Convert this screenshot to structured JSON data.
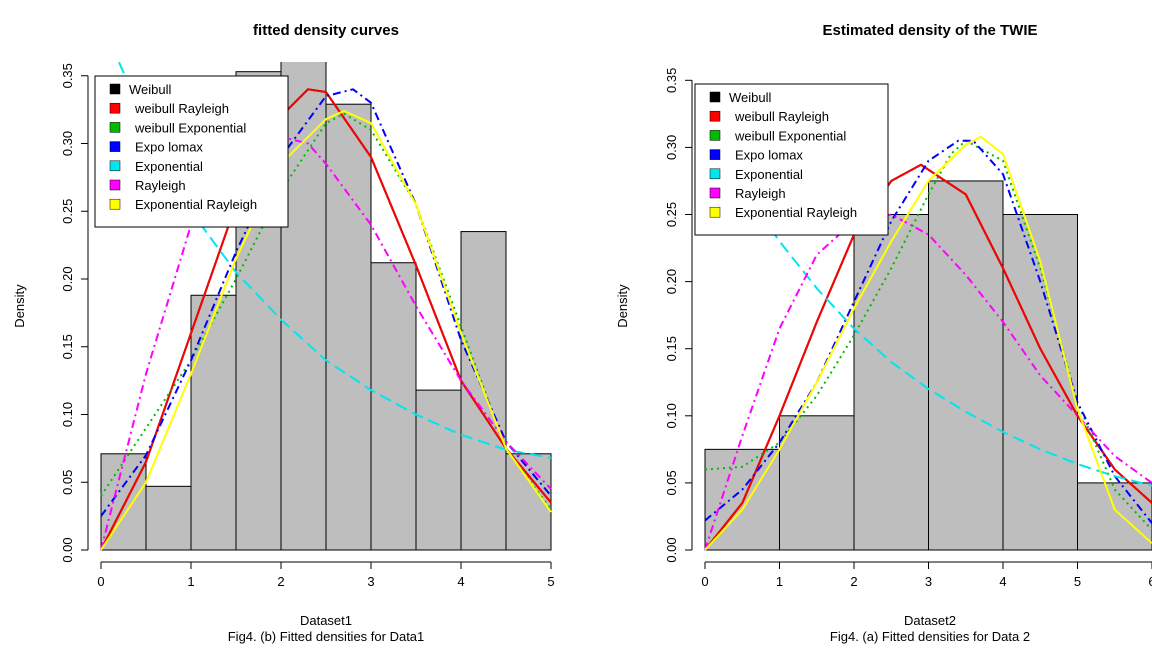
{
  "chart_data": [
    {
      "type": "bar",
      "title": "fitted density curves",
      "xlabel": "Dataset1",
      "ylabel": "Density",
      "caption": "Fig4. (b) Fitted densities for Data1",
      "xlim": [
        0,
        5
      ],
      "ylim": [
        0,
        0.36
      ],
      "x_ticks": [
        "0",
        "1",
        "2",
        "3",
        "4",
        "5"
      ],
      "y_ticks": [
        "0.00",
        "0.05",
        "0.10",
        "0.15",
        "0.20",
        "0.25",
        "0.30",
        "0.35"
      ],
      "histogram": {
        "bin_edges": [
          0,
          0.5,
          1,
          1.5,
          2,
          2.5,
          3,
          3.5,
          4,
          4.5,
          5
        ],
        "density": [
          0.071,
          0.047,
          0.188,
          0.353,
          0.37,
          0.329,
          0.212,
          0.118,
          0.235,
          0.071
        ]
      },
      "legend_position": "top-left",
      "series": [
        {
          "name": "Weibull",
          "color": "#000000",
          "dash": "solid",
          "x": [
            0,
            0.5,
            1,
            1.5,
            2,
            2.3,
            2.5,
            3,
            3.5,
            4,
            4.5,
            5
          ],
          "y": [
            0,
            0.065,
            0.16,
            0.255,
            0.32,
            0.34,
            0.338,
            0.29,
            0.21,
            0.125,
            0.075,
            0.035
          ]
        },
        {
          "name": "weibull Rayleigh",
          "color": "#ff0000",
          "dash": "solid",
          "x": [
            0,
            0.5,
            1,
            1.5,
            2,
            2.3,
            2.5,
            3,
            3.5,
            4,
            4.5,
            5
          ],
          "y": [
            0,
            0.065,
            0.16,
            0.255,
            0.32,
            0.34,
            0.338,
            0.29,
            0.21,
            0.125,
            0.075,
            0.035
          ]
        },
        {
          "name": "weibull Exponential",
          "color": "#00bb00",
          "dash": "dotted",
          "x": [
            0,
            0.5,
            1,
            1.5,
            2,
            2.5,
            2.7,
            3,
            3.5,
            4,
            4.5,
            5
          ],
          "y": [
            0.04,
            0.09,
            0.14,
            0.2,
            0.265,
            0.315,
            0.322,
            0.31,
            0.255,
            0.165,
            0.075,
            0.03
          ]
        },
        {
          "name": "Expo lomax",
          "color": "#0000ff",
          "dash": "dashdot",
          "x": [
            0,
            0.5,
            1,
            1.5,
            2,
            2.5,
            2.8,
            3,
            3.5,
            4,
            4.5,
            5
          ],
          "y": [
            0.025,
            0.07,
            0.14,
            0.22,
            0.29,
            0.335,
            0.34,
            0.33,
            0.255,
            0.155,
            0.08,
            0.04
          ]
        },
        {
          "name": "Exponential",
          "color": "#00e5ee",
          "dash": "longdash",
          "x": [
            0.2,
            0.5,
            1,
            1.5,
            2,
            2.5,
            3,
            3.5,
            4,
            4.5,
            5
          ],
          "y": [
            0.36,
            0.315,
            0.25,
            0.205,
            0.17,
            0.14,
            0.118,
            0.1,
            0.085,
            0.074,
            0.068
          ]
        },
        {
          "name": "Rayleigh",
          "color": "#ff00ff",
          "dash": "dashdot",
          "x": [
            0,
            0.5,
            1,
            1.5,
            2,
            2.3,
            2.5,
            3,
            3.5,
            4,
            4.5,
            5
          ],
          "y": [
            0,
            0.13,
            0.24,
            0.295,
            0.305,
            0.3,
            0.285,
            0.24,
            0.18,
            0.125,
            0.08,
            0.045
          ]
        },
        {
          "name": "Exponential Rayleigh",
          "color": "#ffff00",
          "dash": "solid",
          "x": [
            0,
            0.5,
            1,
            1.5,
            2,
            2.5,
            2.7,
            3,
            3.5,
            4,
            4.5,
            5
          ],
          "y": [
            0,
            0.05,
            0.13,
            0.215,
            0.285,
            0.318,
            0.324,
            0.315,
            0.255,
            0.16,
            0.075,
            0.028
          ]
        }
      ]
    },
    {
      "type": "bar",
      "title": "Estimated density of  the TWIE",
      "xlabel": "Dataset2",
      "ylabel": "Density",
      "caption": "Fig4. (a)   Fitted densities for Data 2",
      "xlim": [
        0,
        6
      ],
      "ylim": [
        0,
        0.35
      ],
      "x_ticks": [
        "0",
        "1",
        "2",
        "3",
        "4",
        "5",
        "6"
      ],
      "y_ticks": [
        "0.00",
        "0.05",
        "0.10",
        "0.15",
        "0.20",
        "0.25",
        "0.30",
        "0.35"
      ],
      "histogram": {
        "bin_edges": [
          0,
          1,
          2,
          3,
          4,
          5,
          6
        ],
        "density": [
          0.075,
          0.1,
          0.25,
          0.275,
          0.25,
          0.05
        ]
      },
      "legend_position": "top-left",
      "series": [
        {
          "name": "Weibull",
          "color": "#000000",
          "dash": "solid",
          "x": [
            0,
            0.5,
            1,
            1.5,
            2,
            2.5,
            2.9,
            3.5,
            4,
            4.5,
            5,
            5.5,
            6
          ],
          "y": [
            0,
            0.035,
            0.1,
            0.17,
            0.235,
            0.275,
            0.287,
            0.265,
            0.21,
            0.15,
            0.1,
            0.06,
            0.035
          ]
        },
        {
          "name": "weibull Rayleigh",
          "color": "#ff0000",
          "dash": "solid",
          "x": [
            0,
            0.5,
            1,
            1.5,
            2,
            2.5,
            2.9,
            3.5,
            4,
            4.5,
            5,
            5.5,
            6
          ],
          "y": [
            0,
            0.035,
            0.1,
            0.17,
            0.235,
            0.275,
            0.287,
            0.265,
            0.21,
            0.15,
            0.1,
            0.06,
            0.035
          ]
        },
        {
          "name": "weibull Exponential",
          "color": "#00bb00",
          "dash": "dotted",
          "x": [
            0,
            0.5,
            1,
            1.5,
            2,
            2.5,
            3,
            3.3,
            3.5,
            4,
            4.5,
            5,
            5.5,
            6
          ],
          "y": [
            0.06,
            0.062,
            0.08,
            0.115,
            0.16,
            0.21,
            0.265,
            0.295,
            0.305,
            0.29,
            0.21,
            0.11,
            0.045,
            0.015
          ]
        },
        {
          "name": "Expo lomax",
          "color": "#0000ff",
          "dash": "dashdot",
          "x": [
            0,
            0.5,
            1,
            1.5,
            2,
            2.5,
            3,
            3.4,
            3.6,
            4,
            4.5,
            5,
            5.5,
            6
          ],
          "y": [
            0.022,
            0.045,
            0.08,
            0.125,
            0.185,
            0.245,
            0.29,
            0.305,
            0.305,
            0.28,
            0.2,
            0.11,
            0.055,
            0.02
          ]
        },
        {
          "name": "Exponential",
          "color": "#00e5ee",
          "dash": "longdash",
          "x": [
            0,
            0.5,
            1,
            1.5,
            2,
            2.5,
            3,
            3.5,
            4,
            4.5,
            5,
            5.5,
            6
          ],
          "y": [
            0.32,
            0.27,
            0.23,
            0.195,
            0.165,
            0.14,
            0.12,
            0.103,
            0.088,
            0.075,
            0.064,
            0.055,
            0.048
          ]
        },
        {
          "name": "Rayleigh",
          "color": "#ff00ff",
          "dash": "dashdot",
          "x": [
            0,
            0.5,
            1,
            1.5,
            2,
            2.5,
            3,
            3.5,
            4,
            4.5,
            5,
            5.5,
            6
          ],
          "y": [
            0,
            0.085,
            0.165,
            0.22,
            0.245,
            0.25,
            0.235,
            0.205,
            0.17,
            0.13,
            0.1,
            0.07,
            0.05
          ]
        },
        {
          "name": "Exponential Rayleigh",
          "color": "#ffff00",
          "dash": "solid",
          "x": [
            0,
            0.5,
            1,
            1.5,
            2,
            2.5,
            3,
            3.5,
            3.7,
            4,
            4.5,
            5,
            5.5,
            6
          ],
          "y": [
            0,
            0.03,
            0.075,
            0.125,
            0.18,
            0.23,
            0.275,
            0.302,
            0.308,
            0.295,
            0.215,
            0.105,
            0.03,
            0.005
          ]
        }
      ]
    }
  ]
}
